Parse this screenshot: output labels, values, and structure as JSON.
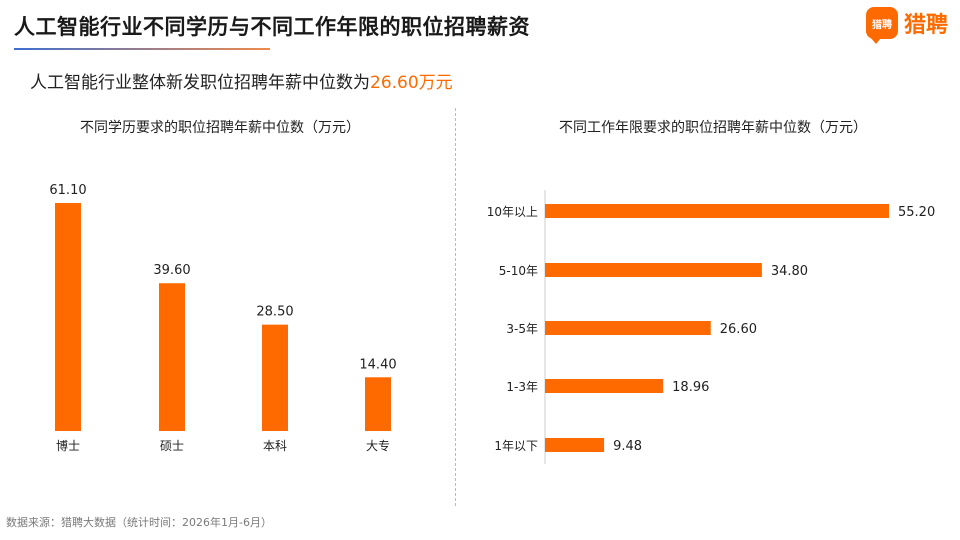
{
  "page": {
    "title": "人工智能行业不同学历与不同工作年限的职位招聘薪资",
    "subtitle_prefix": "人工智能行业整体新发职位招聘年薪中位数为",
    "subtitle_value": "26.60万元",
    "footer": "数据来源：猎聘大数据（统计时间：2026年1月-6月）",
    "logo_badge": "猎聘",
    "logo_text": "猎聘"
  },
  "colors": {
    "bar": "#ff6a00",
    "accent": "#ff6a00",
    "axis": "#cccccc"
  },
  "chart_data": [
    {
      "type": "bar",
      "orientation": "vertical",
      "title": "不同学历要求的职位招聘年薪中位数（万元）",
      "categories": [
        "博士",
        "硕士",
        "本科",
        "大专"
      ],
      "values": [
        61.1,
        39.6,
        28.5,
        14.4
      ],
      "labels": [
        "61.10",
        "39.60",
        "28.50",
        "14.40"
      ],
      "ylim": [
        0,
        61.1
      ],
      "grid": false
    },
    {
      "type": "bar",
      "orientation": "horizontal",
      "title": "不同工作年限要求的职位招聘年薪中位数（万元）",
      "categories": [
        "10年以上",
        "5-10年",
        "3-5年",
        "1-3年",
        "1年以下"
      ],
      "values": [
        55.2,
        34.8,
        26.6,
        18.96,
        9.48
      ],
      "labels": [
        "55.20",
        "34.80",
        "26.60",
        "18.96",
        "9.48"
      ],
      "xlim": [
        0,
        55.2
      ],
      "grid": false
    }
  ]
}
